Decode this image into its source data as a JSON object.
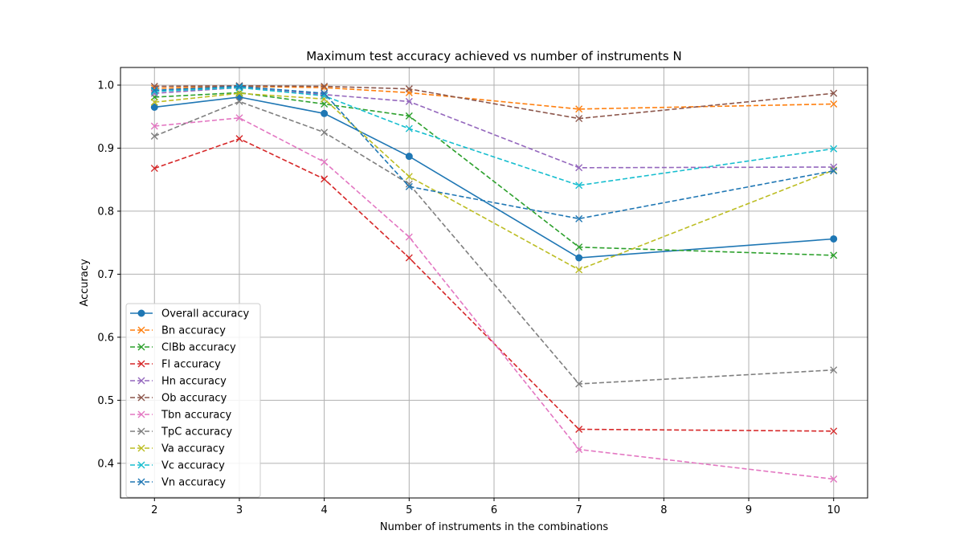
{
  "chart_data": {
    "type": "line",
    "title": "Maximum test accuracy achieved vs number of instruments N",
    "xlabel": "Number of instruments in the combinations",
    "ylabel": "Accuracy",
    "x": [
      2,
      3,
      4,
      5,
      7,
      10
    ],
    "xlim": [
      1.6,
      10.4
    ],
    "ylim": [
      0.345,
      1.028
    ],
    "xticks": [
      2,
      3,
      4,
      5,
      6,
      7,
      8,
      9,
      10
    ],
    "xtick_labels": [
      "2",
      "3",
      "4",
      "5",
      "6",
      "7",
      "8",
      "9",
      "10"
    ],
    "yticks": [
      0.4,
      0.5,
      0.6,
      0.7,
      0.8,
      0.9,
      1.0
    ],
    "ytick_labels": [
      "0.4",
      "0.5",
      "0.6",
      "0.7",
      "0.8",
      "0.9",
      "1.0"
    ],
    "grid": true,
    "legend_position": "lower-left",
    "series": [
      {
        "name": "Overall accuracy",
        "color": "#1f77b4",
        "dash": "solid",
        "marker": "circle",
        "values": [
          0.965,
          0.981,
          0.955,
          0.887,
          0.726,
          0.756
        ]
      },
      {
        "name": "Bn accuracy",
        "color": "#ff7f0e",
        "dash": "dashed",
        "marker": "x",
        "values": [
          0.995,
          0.998,
          0.996,
          0.988,
          0.962,
          0.97
        ]
      },
      {
        "name": "ClBb accuracy",
        "color": "#2ca02c",
        "dash": "dashed",
        "marker": "x",
        "values": [
          0.981,
          0.988,
          0.97,
          0.951,
          0.743,
          0.73
        ]
      },
      {
        "name": "Fl accuracy",
        "color": "#d62728",
        "dash": "dashed",
        "marker": "x",
        "values": [
          0.868,
          0.915,
          0.851,
          0.726,
          0.454,
          0.451
        ]
      },
      {
        "name": "Hn accuracy",
        "color": "#9467bd",
        "dash": "dashed",
        "marker": "x",
        "values": [
          0.987,
          0.996,
          0.985,
          0.974,
          0.869,
          0.87
        ]
      },
      {
        "name": "Ob accuracy",
        "color": "#8c564b",
        "dash": "dashed",
        "marker": "x",
        "values": [
          0.998,
          0.999,
          0.998,
          0.994,
          0.947,
          0.987
        ]
      },
      {
        "name": "Tbn accuracy",
        "color": "#e377c2",
        "dash": "dashed",
        "marker": "x",
        "values": [
          0.935,
          0.948,
          0.878,
          0.759,
          0.422,
          0.375
        ]
      },
      {
        "name": "TpC accuracy",
        "color": "#7f7f7f",
        "dash": "dashed",
        "marker": "x",
        "values": [
          0.919,
          0.974,
          0.925,
          0.843,
          0.526,
          0.548
        ]
      },
      {
        "name": "Va accuracy",
        "color": "#bcbd22",
        "dash": "dashed",
        "marker": "x",
        "values": [
          0.973,
          0.987,
          0.978,
          0.855,
          0.707,
          0.865
        ]
      },
      {
        "name": "Vc accuracy",
        "color": "#17becf",
        "dash": "dashed",
        "marker": "x",
        "values": [
          0.99,
          0.996,
          0.983,
          0.931,
          0.841,
          0.899
        ]
      },
      {
        "name": "Vn accuracy",
        "color": "#1f77b4",
        "dash": "dashed",
        "marker": "x",
        "values": [
          0.992,
          0.998,
          0.987,
          0.839,
          0.788,
          0.864
        ]
      }
    ]
  }
}
